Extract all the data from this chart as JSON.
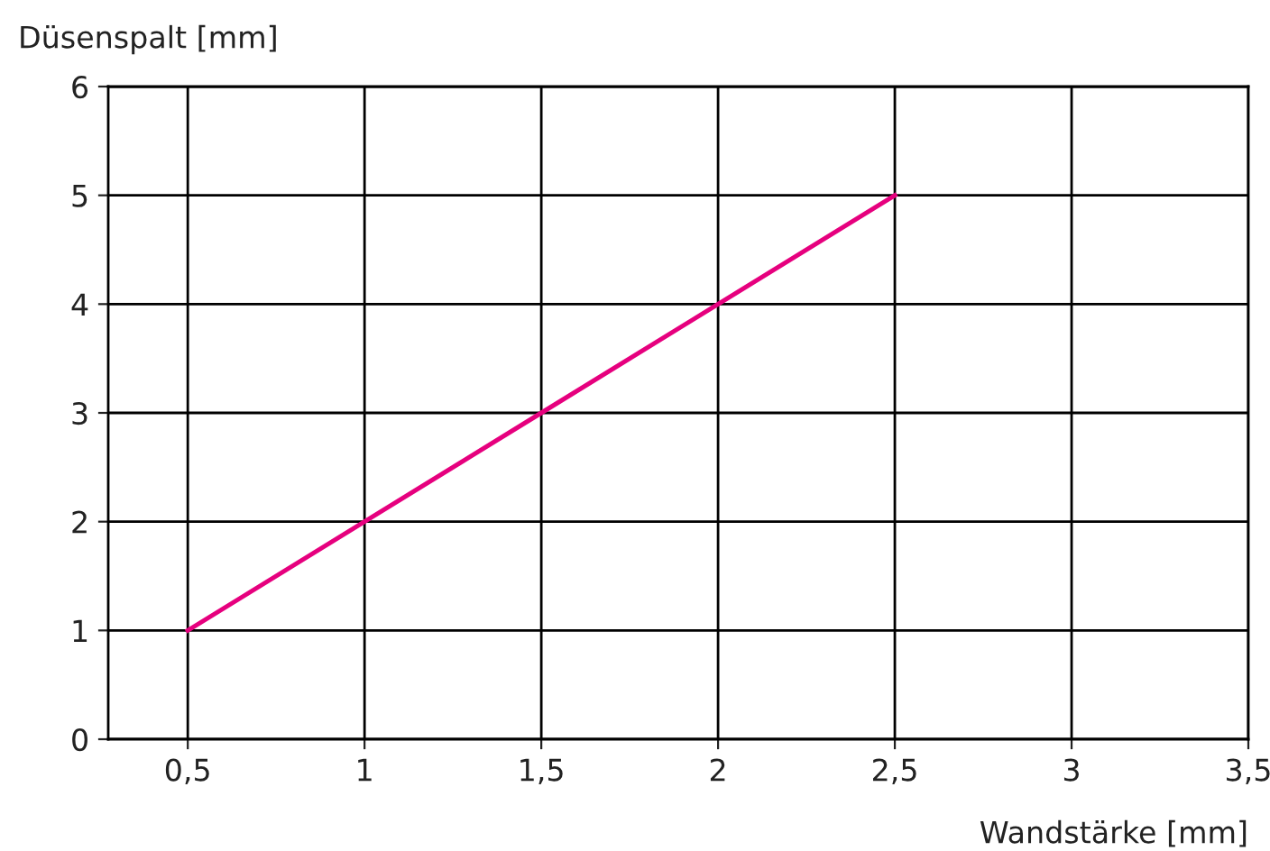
{
  "chart_data": {
    "type": "line",
    "xlabel": "Wandstärke [mm]",
    "ylabel": "Düsenspalt [mm]",
    "x": [
      0.5,
      1,
      1.5,
      2,
      2.5
    ],
    "series": [
      {
        "color": "#e6007e",
        "values": [
          1,
          2,
          3,
          4,
          5
        ]
      }
    ],
    "xlim": [
      0.275,
      3.5
    ],
    "xticks": [
      {
        "value": 0.5,
        "label": "0,5"
      },
      1,
      {
        "value": 1.5,
        "label": "1,5"
      },
      2,
      {
        "value": 2.5,
        "label": "2,5"
      },
      3,
      {
        "value": 3.5,
        "label": "3,5"
      }
    ],
    "ylim": [
      0,
      6
    ],
    "yticks": [
      0,
      1,
      2,
      3,
      4,
      5,
      6
    ],
    "grid": true,
    "marker": "none",
    "line_style": "solid",
    "legend": false
  }
}
